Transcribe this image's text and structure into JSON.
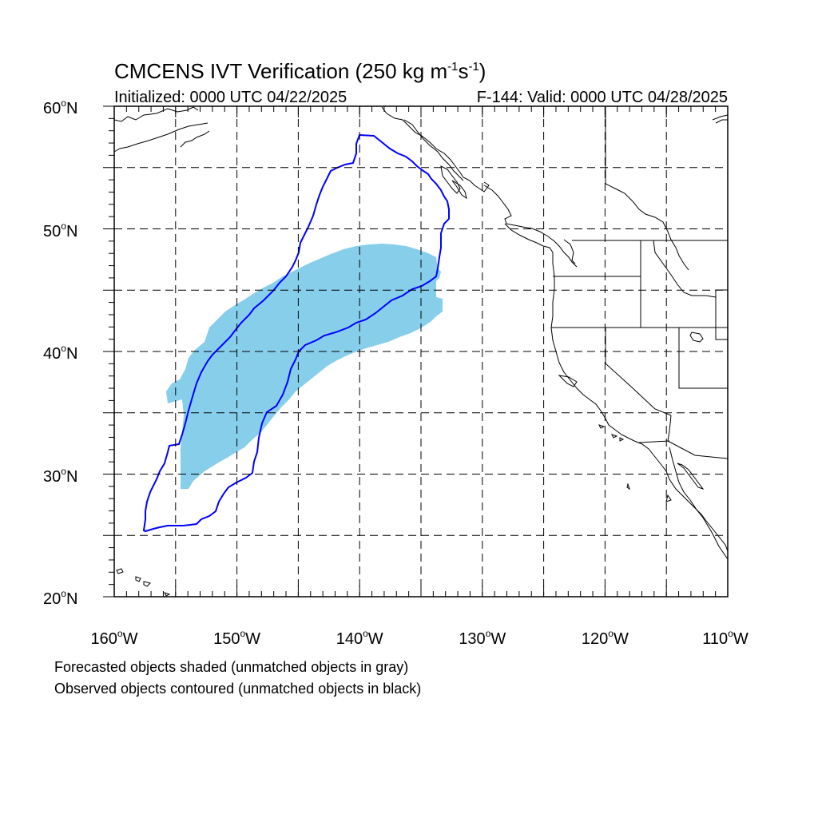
{
  "title": {
    "main": "CMCENS IVT Verification (250 kg m",
    "exp1": "-1",
    "mid": "s",
    "exp2": "-1",
    "close": ")"
  },
  "subtitle_left": "Initialized: 0000 UTC 04/22/2025",
  "subtitle_right": "F-144: Valid: 0000 UTC 04/28/2025",
  "lat_labels": [
    "60",
    "50",
    "40",
    "30",
    "20"
  ],
  "lat_suffix": "N",
  "lon_labels": [
    "160",
    "150",
    "140",
    "130",
    "120",
    "110"
  ],
  "lon_suffix": "W",
  "degree_symbol": "o",
  "notes": [
    "Forecasted objects shaded (unmatched objects in gray)",
    "Observed objects contoured (unmatched objects in black)"
  ],
  "colors": {
    "forecast_fill": "#87ceeb",
    "observed_contour": "#0000ff",
    "coastline": "#000000",
    "grid": "#000000"
  },
  "map": {
    "projection": "cylindrical-equidistant",
    "lon_range_deg": [
      -160,
      -110
    ],
    "lat_range_deg": [
      20,
      60
    ],
    "grid_spacing_deg": 5,
    "grid_style": "dashed"
  }
}
